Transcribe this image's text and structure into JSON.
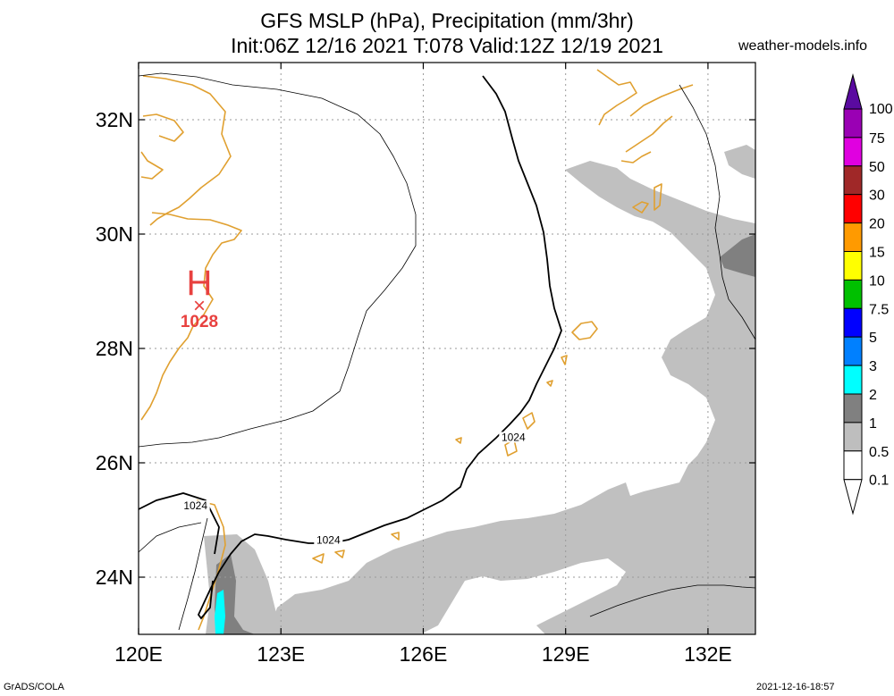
{
  "header": {
    "title_line1": "GFS MSLP (hPa), Precipitation (mm/3hr)",
    "title_line2": "Init:06Z 12/16 2021 T:078 Valid:12Z 12/19 2021",
    "site": "weather-models.info"
  },
  "footer": {
    "left": "GrADS/COLA",
    "right": "2021-12-16-18:57"
  },
  "map": {
    "lat_labels": [
      {
        "label": "32N",
        "lat": 32
      },
      {
        "label": "30N",
        "lat": 30
      },
      {
        "label": "28N",
        "lat": 28
      },
      {
        "label": "26N",
        "lat": 26
      },
      {
        "label": "24N",
        "lat": 24
      }
    ],
    "lon_labels": [
      {
        "label": "120E",
        "lon": 120
      },
      {
        "label": "123E",
        "lon": 123
      },
      {
        "label": "126E",
        "lon": 126
      },
      {
        "label": "129E",
        "lon": 129
      },
      {
        "label": "132E",
        "lon": 132
      }
    ],
    "lon_range": [
      120,
      133
    ],
    "lat_range": [
      23,
      33
    ],
    "high_center": {
      "symbol": "H",
      "marker": "×",
      "value": "1028",
      "color": "#e8413f"
    },
    "isobar_labels": [
      {
        "text": "1024",
        "lon": 121.2,
        "lat": 25.2
      },
      {
        "text": "1024",
        "lon": 124.0,
        "lat": 24.6
      },
      {
        "text": "1024",
        "lon": 127.9,
        "lat": 26.4
      }
    ],
    "coastline_color": "#e0a030"
  },
  "legend": {
    "unit": "mm/3hr",
    "items": [
      {
        "label": "100",
        "color": "#5a0aa0"
      },
      {
        "label": "75",
        "color": "#9a00b4"
      },
      {
        "label": "50",
        "color": "#e000e0"
      },
      {
        "label": "30",
        "color": "#a02828"
      },
      {
        "label": "20",
        "color": "#ff0000"
      },
      {
        "label": "15",
        "color": "#ff9a00"
      },
      {
        "label": "10",
        "color": "#ffff00"
      },
      {
        "label": "7.5",
        "color": "#00c000"
      },
      {
        "label": "5",
        "color": "#0000ff"
      },
      {
        "label": "3",
        "color": "#0080ff"
      },
      {
        "label": "2",
        "color": "#00ffff"
      },
      {
        "label": "1",
        "color": "#808080"
      },
      {
        "label": "0.5",
        "color": "#bebebe"
      },
      {
        "label": "0.1",
        "color": "#ffffff"
      }
    ]
  }
}
